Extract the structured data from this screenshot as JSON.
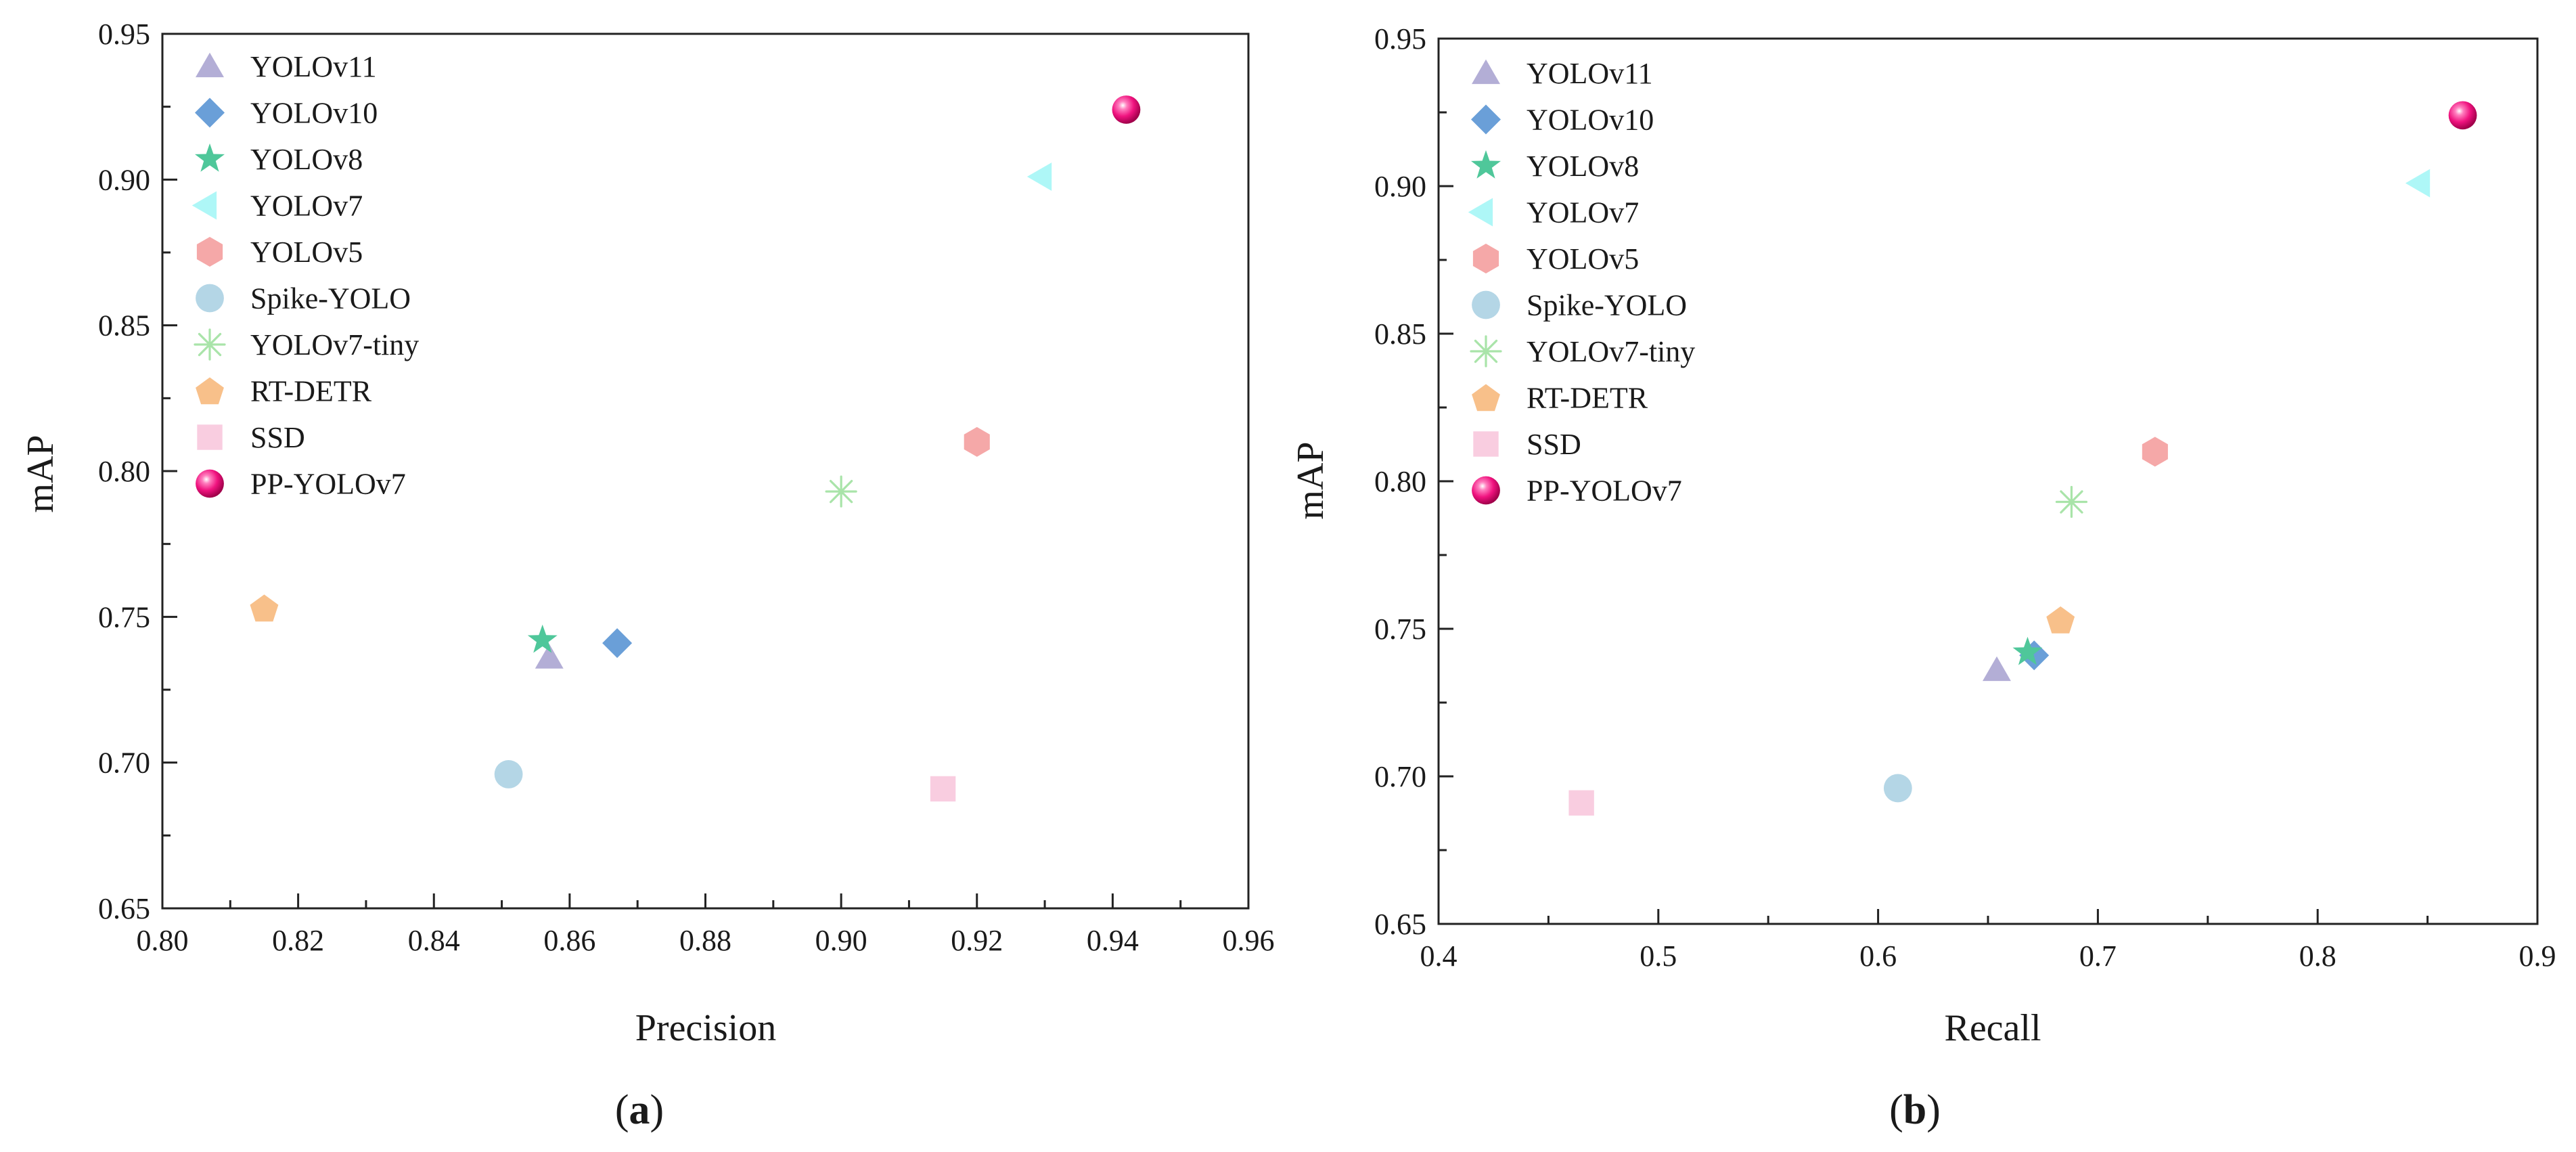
{
  "chart_data": [
    {
      "type": "scatter",
      "panel_label": "a",
      "xlabel": "Precision",
      "ylabel": "mAP",
      "xlim": [
        0.8,
        0.96
      ],
      "ylim": [
        0.65,
        0.95
      ],
      "xticks": [
        "0.80",
        "0.82",
        "0.84",
        "0.86",
        "0.88",
        "0.90",
        "0.92",
        "0.94",
        "0.96"
      ],
      "yticks": [
        "0.65",
        "0.70",
        "0.75",
        "0.80",
        "0.85",
        "0.90",
        "0.95"
      ],
      "legend_position": "top-left",
      "series": [
        {
          "name": "YOLOv11",
          "x": 0.857,
          "y": 0.736
        },
        {
          "name": "YOLOv10",
          "x": 0.867,
          "y": 0.741
        },
        {
          "name": "YOLOv8",
          "x": 0.856,
          "y": 0.742
        },
        {
          "name": "YOLOv7",
          "x": 0.93,
          "y": 0.901
        },
        {
          "name": "YOLOv5",
          "x": 0.92,
          "y": 0.81
        },
        {
          "name": "Spike-YOLO",
          "x": 0.851,
          "y": 0.696
        },
        {
          "name": "YOLOv7-tiny",
          "x": 0.9,
          "y": 0.793
        },
        {
          "name": "RT-DETR",
          "x": 0.815,
          "y": 0.753
        },
        {
          "name": "SSD",
          "x": 0.915,
          "y": 0.691
        },
        {
          "name": "PP-YOLOv7",
          "x": 0.942,
          "y": 0.924
        }
      ]
    },
    {
      "type": "scatter",
      "panel_label": "b",
      "xlabel": "Recall",
      "ylabel": "mAP",
      "xlim": [
        0.4,
        0.9
      ],
      "ylim": [
        0.65,
        0.95
      ],
      "xticks": [
        "0.4",
        "0.5",
        "0.6",
        "0.7",
        "0.8",
        "0.9"
      ],
      "yticks": [
        "0.65",
        "0.70",
        "0.75",
        "0.80",
        "0.85",
        "0.90",
        "0.95"
      ],
      "legend_position": "top-left",
      "series": [
        {
          "name": "YOLOv11",
          "x": 0.654,
          "y": 0.736
        },
        {
          "name": "YOLOv10",
          "x": 0.671,
          "y": 0.741
        },
        {
          "name": "YOLOv8",
          "x": 0.668,
          "y": 0.742
        },
        {
          "name": "YOLOv7",
          "x": 0.848,
          "y": 0.901
        },
        {
          "name": "YOLOv5",
          "x": 0.726,
          "y": 0.81
        },
        {
          "name": "Spike-YOLO",
          "x": 0.609,
          "y": 0.696
        },
        {
          "name": "YOLOv7-tiny",
          "x": 0.688,
          "y": 0.793
        },
        {
          "name": "RT-DETR",
          "x": 0.683,
          "y": 0.753
        },
        {
          "name": "SSD",
          "x": 0.465,
          "y": 0.691
        },
        {
          "name": "PP-YOLOv7",
          "x": 0.866,
          "y": 0.924
        }
      ]
    }
  ],
  "styles": {
    "YOLOv11": {
      "marker": "triangle-up",
      "color": "#b3aed6"
    },
    "YOLOv10": {
      "marker": "diamond",
      "color": "#6a9fd8"
    },
    "YOLOv8": {
      "marker": "star",
      "color": "#4fc79a"
    },
    "YOLOv7": {
      "marker": "triangle-left",
      "color": "#aef7f7"
    },
    "YOLOv5": {
      "marker": "hexagon",
      "color": "#f5a8a8"
    },
    "Spike-YOLO": {
      "marker": "circle",
      "color": "#b4d6e6"
    },
    "YOLOv7-tiny": {
      "marker": "asterisk",
      "color": "#a9e4a9"
    },
    "RT-DETR": {
      "marker": "pentagon",
      "color": "#f8c08a"
    },
    "SSD": {
      "marker": "square",
      "color": "#f9cde0"
    },
    "PP-YOLOv7": {
      "marker": "sphere",
      "color": "#f0137f"
    }
  }
}
